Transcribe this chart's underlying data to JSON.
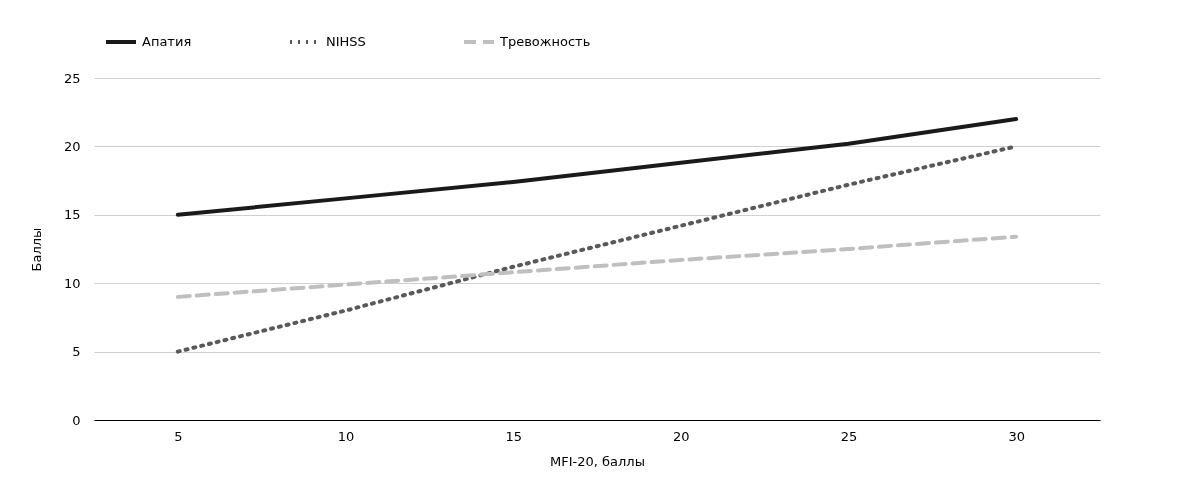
{
  "chart_data": {
    "type": "line",
    "xlabel": "MFI-20, баллы",
    "ylabel": "Баллы",
    "categories": [
      "5",
      "10",
      "15",
      "20",
      "25",
      "30"
    ],
    "series": [
      {
        "name": "Апатия",
        "color": "#1a1a1a",
        "line_style": "solid",
        "values": [
          15,
          16.2,
          17.4,
          18.8,
          20.2,
          22
        ]
      },
      {
        "name": "NIHSS",
        "color": "#595959",
        "line_style": "dotted",
        "values": [
          5,
          8,
          11.2,
          14.2,
          17.2,
          20
        ]
      },
      {
        "name": "Тревожность",
        "color": "#bfbfbf",
        "line_style": "dashed",
        "values": [
          9,
          9.9,
          10.8,
          11.7,
          12.5,
          13.4
        ]
      }
    ],
    "ylim": [
      0,
      25
    ],
    "yticks": [
      0,
      5,
      10,
      15,
      20,
      25
    ],
    "grid": "y",
    "legend": "top",
    "marker": "none"
  }
}
